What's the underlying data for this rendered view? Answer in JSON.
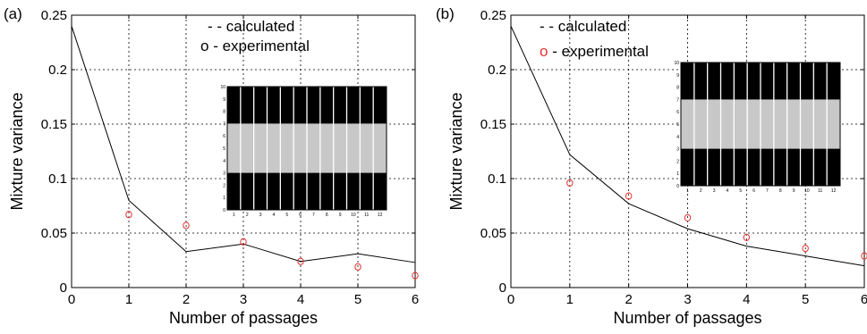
{
  "chart_data": [
    {
      "type": "line",
      "panel_label": "(a)",
      "xlabel": "Number of passages",
      "ylabel": "Mixture variance",
      "xlim": [
        0,
        6
      ],
      "ylim": [
        0,
        0.25
      ],
      "xticks": [
        "0",
        "1",
        "2",
        "3",
        "4",
        "5",
        "6"
      ],
      "yticks": [
        "0",
        "0.05",
        "0.1",
        "0.15",
        "0.2",
        "0.25"
      ],
      "grid": true,
      "legend_position": "top-right",
      "legend": [
        {
          "marker": "- -",
          "label": "calculated"
        },
        {
          "marker": "o",
          "label": "experimental"
        }
      ],
      "series": [
        {
          "name": "calculated",
          "style": "line",
          "color": "#000000",
          "x": [
            0,
            1,
            2,
            3,
            4,
            5,
            6
          ],
          "y": [
            0.24,
            0.08,
            0.033,
            0.04,
            0.024,
            0.031,
            0.023
          ]
        },
        {
          "name": "experimental",
          "style": "marker",
          "color": "#e8312f",
          "x": [
            1,
            2,
            3,
            4,
            5,
            6
          ],
          "y": [
            0.067,
            0.057,
            0.042,
            0.024,
            0.019,
            0.011
          ]
        }
      ],
      "inset": {
        "x_ticks": [
          "1",
          "2",
          "3",
          "4",
          "5",
          "6",
          "7",
          "8",
          "9",
          "10",
          "11",
          "12"
        ],
        "y_ticks": [
          "0",
          "1",
          "2",
          "3",
          "4",
          "5",
          "6",
          "7",
          "8",
          "9",
          "10"
        ],
        "columns": 12,
        "band": [
          3,
          7
        ],
        "colors": {
          "outer": "#000000",
          "band": "#c8c8c8",
          "divider": "#ffffff"
        }
      }
    },
    {
      "type": "line",
      "panel_label": "(b)",
      "xlabel": "Number of passages",
      "ylabel": "Mixture variance",
      "xlim": [
        0,
        6
      ],
      "ylim": [
        0,
        0.25
      ],
      "xticks": [
        "0",
        "1",
        "2",
        "3",
        "4",
        "5",
        "6"
      ],
      "yticks": [
        "0",
        "0.05",
        "0.1",
        "0.15",
        "0.2",
        "0.25"
      ],
      "grid": true,
      "legend_position": "top-left",
      "legend": [
        {
          "marker": "- -",
          "label": "calculated"
        },
        {
          "marker": "o",
          "label": "experimental"
        }
      ],
      "series": [
        {
          "name": "calculated",
          "style": "line",
          "color": "#000000",
          "x": [
            0,
            1,
            2,
            3,
            4,
            5,
            6
          ],
          "y": [
            0.24,
            0.122,
            0.077,
            0.054,
            0.038,
            0.029,
            0.02
          ]
        },
        {
          "name": "experimental",
          "style": "marker",
          "color": "#e8312f",
          "x": [
            1,
            2,
            3,
            4,
            5,
            6
          ],
          "y": [
            0.096,
            0.084,
            0.064,
            0.046,
            0.036,
            0.029
          ]
        }
      ],
      "inset": {
        "x_ticks": [
          "1",
          "2",
          "3",
          "4",
          "5",
          "6",
          "7",
          "8",
          "9",
          "10",
          "11",
          "12"
        ],
        "y_ticks": [
          "0",
          "1",
          "2",
          "3",
          "4",
          "5",
          "6",
          "7",
          "8",
          "9",
          "10"
        ],
        "columns": 12,
        "band": [
          3,
          7
        ],
        "colors": {
          "outer": "#000000",
          "band": "#c8c8c8",
          "divider": "#ffffff"
        }
      }
    }
  ]
}
